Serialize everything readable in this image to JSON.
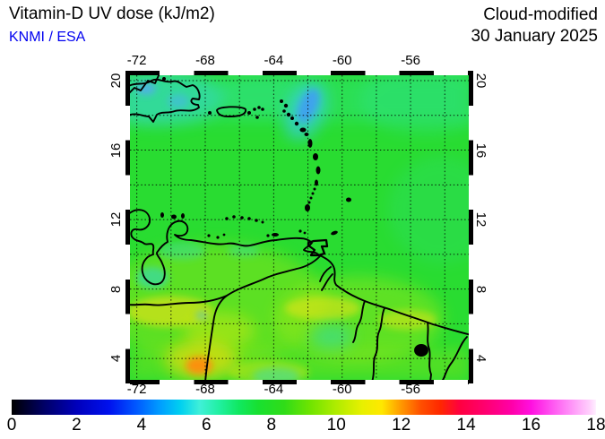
{
  "header": {
    "title": "Vitamin-D UV dose (kJ/m2)",
    "source": "KNMI / ESA",
    "source_color": "#0000f0",
    "mode": "Cloud-modified",
    "date": "30 January 2025"
  },
  "map": {
    "extent": {
      "lon_min": -72.4,
      "lon_max": -52.6,
      "lat_min": 2.77,
      "lat_max": 20.31
    },
    "lon_tick_values": [
      -72,
      -68,
      -64,
      -60,
      -56
    ],
    "lon_tick_labels": [
      "-72",
      "-68",
      "-64",
      "-60",
      "-56"
    ],
    "lat_tick_values": [
      20,
      16,
      12,
      8,
      4
    ],
    "lat_tick_labels": [
      "20",
      "16",
      "12",
      "8",
      "4"
    ],
    "grid_step_deg": 2
  },
  "colorbar": {
    "min": 0,
    "max": 18,
    "tick_values": [
      0,
      2,
      4,
      6,
      8,
      10,
      12,
      14,
      16,
      18
    ],
    "tick_labels": [
      "0",
      "2",
      "4",
      "6",
      "8",
      "10",
      "12",
      "14",
      "16",
      "18"
    ],
    "stops": [
      {
        "v": 0,
        "c": "#000000"
      },
      {
        "v": 1,
        "c": "#000066"
      },
      {
        "v": 2,
        "c": "#0000bb"
      },
      {
        "v": 3,
        "c": "#0011ee"
      },
      {
        "v": 3.8,
        "c": "#0055ff"
      },
      {
        "v": 4.6,
        "c": "#00a0ff"
      },
      {
        "v": 5.2,
        "c": "#00d0f0"
      },
      {
        "v": 5.8,
        "c": "#40f0d8"
      },
      {
        "v": 6.4,
        "c": "#20f0a0"
      },
      {
        "v": 7,
        "c": "#10e860"
      },
      {
        "v": 7.6,
        "c": "#18e030"
      },
      {
        "v": 8.4,
        "c": "#30dc18"
      },
      {
        "v": 9.2,
        "c": "#70e400"
      },
      {
        "v": 10,
        "c": "#b0ec00"
      },
      {
        "v": 10.8,
        "c": "#e8f000"
      },
      {
        "v": 11.4,
        "c": "#ffe800"
      },
      {
        "v": 12,
        "c": "#ff9800"
      },
      {
        "v": 12.6,
        "c": "#ff5000"
      },
      {
        "v": 13.2,
        "c": "#ff2800"
      },
      {
        "v": 13.8,
        "c": "#ff0040"
      },
      {
        "v": 14.6,
        "c": "#ff0070"
      },
      {
        "v": 15.4,
        "c": "#ff00a8"
      },
      {
        "v": 16,
        "c": "#ff10e0"
      },
      {
        "v": 16.6,
        "c": "#ff50f0"
      },
      {
        "v": 17.2,
        "c": "#ff90f8"
      },
      {
        "v": 17.8,
        "c": "#ffd0fc"
      },
      {
        "v": 18,
        "c": "#fff0ff"
      }
    ]
  },
  "chart_data": {
    "type": "heatmap",
    "title": "Vitamin-D UV dose (kJ/m2)",
    "subtitle": "KNMI / ESA",
    "variant": "Cloud-modified",
    "date": "30 January 2025",
    "units": "kJ/m2",
    "scale_range": [
      0,
      18
    ],
    "extent": {
      "lon_min": -72.4,
      "lon_max": -52.6,
      "lat_min": 2.77,
      "lat_max": 20.31
    },
    "grid": "dotted, every 2 degrees",
    "field_samples": [
      {
        "lon": -62,
        "lat": 14,
        "value": 7.5,
        "note": "open Caribbean ocean, green"
      },
      {
        "lon": -56,
        "lat": 19,
        "value": 6.5,
        "note": "northern ocean, cyan-green"
      },
      {
        "lon": -71,
        "lat": 19,
        "value": 5.5,
        "note": "Hispaniola area, cyan with blue cloud spots"
      },
      {
        "lon": -60.5,
        "lat": 17.8,
        "value": 4.5,
        "note": "cloud-reduced blue patch NE of Guadeloupe"
      },
      {
        "lon": -66,
        "lat": 8,
        "value": 9,
        "note": "Venezuelan interior, yellow-green"
      },
      {
        "lon": -70,
        "lat": 7,
        "value": 10.5,
        "note": "yellow patch west Venezuela"
      },
      {
        "lon": -58,
        "lat": 6.8,
        "value": 10,
        "note": "yellow band, Guyana coast"
      },
      {
        "lon": -67.8,
        "lat": 4.3,
        "value": 12,
        "note": "orange maximum, southern edge"
      },
      {
        "lon": -71.3,
        "lat": 8.6,
        "value": 6.5,
        "note": "cyan patch near Lake Maracaibo"
      },
      {
        "lon": -60.8,
        "lat": 5.3,
        "value": 7,
        "note": "cyan patch, Guyana interior"
      }
    ]
  }
}
